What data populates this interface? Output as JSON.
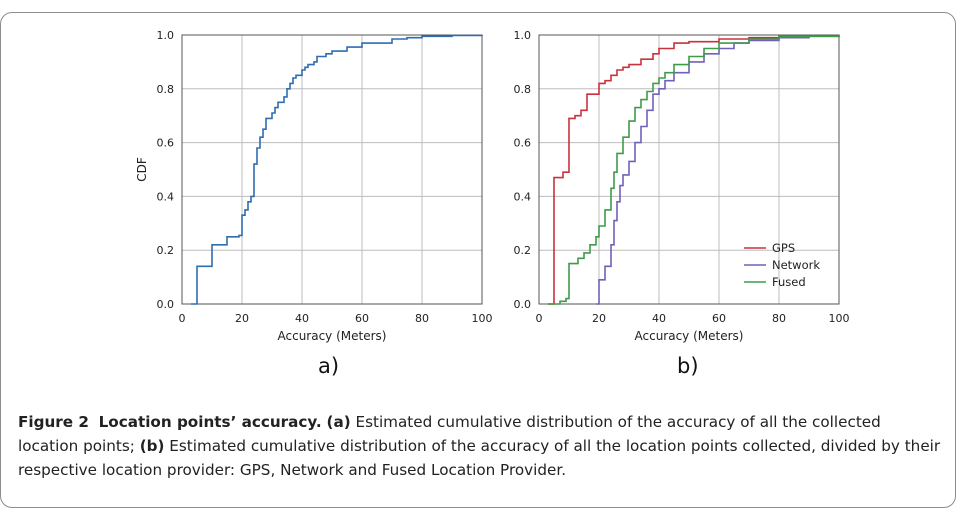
{
  "figure": {
    "caption": {
      "prefix": "Figure 2",
      "title": "Location points’ accuracy.",
      "part_a_tag": "(a)",
      "part_a_text": " Estimated cumulative distribution of the accuracy of all the collected location points; ",
      "part_b_tag": "(b)",
      "part_b_text": " Estimated cumulative distribution of the accuracy of all the location points collected, divided by their respective location provider: GPS, Network and Fused Location Provider."
    },
    "panel_a_tag": "a)",
    "panel_b_tag": "b)"
  },
  "chart_data": [
    {
      "type": "line",
      "title": "",
      "xlabel": "Accuracy (Meters)",
      "ylabel": "CDF",
      "xlim": [
        0,
        100
      ],
      "ylim": [
        0,
        1
      ],
      "x_ticks": [
        "0",
        "20",
        "40",
        "60",
        "80",
        "100"
      ],
      "y_ticks": [
        "0.0",
        "0.2",
        "0.4",
        "0.6",
        "0.8",
        "1.0"
      ],
      "grid": true,
      "step": true,
      "series": [
        {
          "color": "#2f6db0",
          "x": [
            3,
            5,
            5,
            10,
            10,
            15,
            15,
            19,
            20,
            21,
            22,
            23,
            24,
            24,
            25,
            25,
            26,
            27,
            28,
            30,
            31,
            32,
            34,
            35,
            36,
            37,
            38,
            40,
            41,
            42,
            44,
            45,
            48,
            50,
            55,
            60,
            70,
            75,
            80,
            90,
            100
          ],
          "y": [
            0.0,
            0.01,
            0.14,
            0.15,
            0.22,
            0.23,
            0.25,
            0.255,
            0.33,
            0.35,
            0.38,
            0.4,
            0.46,
            0.52,
            0.55,
            0.58,
            0.62,
            0.65,
            0.69,
            0.71,
            0.73,
            0.75,
            0.77,
            0.8,
            0.82,
            0.84,
            0.85,
            0.87,
            0.88,
            0.89,
            0.9,
            0.92,
            0.93,
            0.94,
            0.955,
            0.97,
            0.985,
            0.99,
            0.995,
            0.998,
            1.0
          ]
        }
      ]
    },
    {
      "type": "line",
      "title": "",
      "xlabel": "Accuracy (Meters)",
      "ylabel": "",
      "xlim": [
        0,
        100
      ],
      "ylim": [
        0,
        1
      ],
      "x_ticks": [
        "0",
        "20",
        "40",
        "60",
        "80",
        "100"
      ],
      "y_ticks": [
        "0.0",
        "0.2",
        "0.4",
        "0.6",
        "0.8",
        "1.0"
      ],
      "grid": true,
      "step": true,
      "legend": "bottom-right",
      "series": [
        {
          "name": "GPS",
          "color": "#c8323c",
          "x": [
            3,
            5,
            5,
            8,
            10,
            10,
            12,
            14,
            16,
            20,
            20,
            22,
            24,
            26,
            28,
            30,
            34,
            38,
            40,
            45,
            50,
            60,
            70,
            80,
            100
          ],
          "y": [
            0.0,
            0.01,
            0.47,
            0.49,
            0.49,
            0.69,
            0.7,
            0.72,
            0.78,
            0.78,
            0.82,
            0.83,
            0.85,
            0.87,
            0.88,
            0.89,
            0.91,
            0.93,
            0.95,
            0.97,
            0.975,
            0.985,
            0.99,
            0.997,
            1.0
          ]
        },
        {
          "name": "Network",
          "color": "#7060b8",
          "x": [
            19,
            20,
            20,
            22,
            24,
            25,
            26,
            27,
            28,
            30,
            32,
            34,
            36,
            38,
            40,
            42,
            45,
            50,
            55,
            60,
            65,
            70,
            80,
            90,
            100
          ],
          "y": [
            0.0,
            0.0,
            0.09,
            0.14,
            0.22,
            0.31,
            0.38,
            0.44,
            0.48,
            0.53,
            0.6,
            0.66,
            0.72,
            0.78,
            0.8,
            0.83,
            0.86,
            0.9,
            0.93,
            0.95,
            0.97,
            0.98,
            0.99,
            0.995,
            1.0
          ]
        },
        {
          "name": "Fused",
          "color": "#3f9a4a",
          "x": [
            3,
            7,
            9,
            10,
            10,
            13,
            15,
            17,
            19,
            20,
            22,
            24,
            25,
            26,
            28,
            30,
            32,
            34,
            36,
            38,
            40,
            42,
            45,
            50,
            55,
            60,
            70,
            80,
            100
          ],
          "y": [
            0.0,
            0.01,
            0.02,
            0.05,
            0.15,
            0.17,
            0.19,
            0.22,
            0.25,
            0.29,
            0.35,
            0.43,
            0.49,
            0.56,
            0.62,
            0.68,
            0.73,
            0.76,
            0.79,
            0.82,
            0.84,
            0.86,
            0.89,
            0.92,
            0.95,
            0.97,
            0.985,
            0.995,
            1.0
          ]
        }
      ]
    }
  ]
}
